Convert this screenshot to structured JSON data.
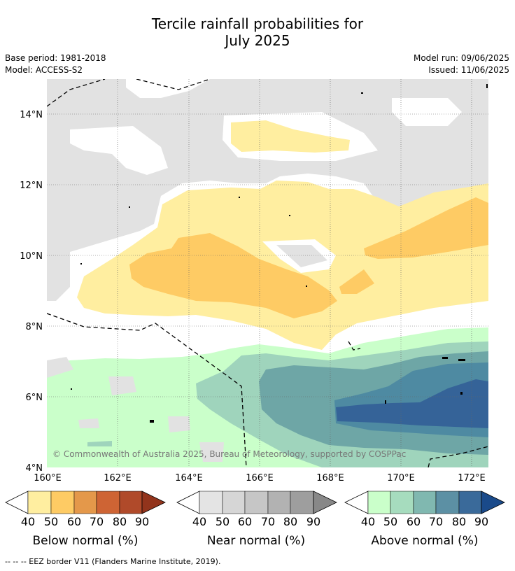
{
  "title": {
    "line1": "Tercile rainfall probabilities for",
    "line2": "July 2025"
  },
  "meta": {
    "base_period": "Base period: 1981-2018",
    "model": "Model: ACCESS-S2",
    "model_run": "Model run: 09/06/2025",
    "issued": "Issued: 11/06/2025"
  },
  "map": {
    "lat_labels": [
      "14°N",
      "12°N",
      "10°N",
      "8°N",
      "6°N",
      "4°N"
    ],
    "lon_labels": [
      "160°E",
      "162°E",
      "164°E",
      "166°E",
      "168°E",
      "170°E",
      "172°E"
    ],
    "copyright": "© Commonwealth of Australia 2025, Bureau of Meteorology, supported by COSPPac",
    "colors": {
      "near_grey": "#e2e2e2",
      "below_40": "#ffeea0",
      "below_50": "#fecb64",
      "above_40": "#cbffcb",
      "above_50": "#9fd4bc",
      "above_60": "#6ea6a6",
      "above_70": "#4e8aa2",
      "above_80": "#356398"
    }
  },
  "legends": [
    {
      "label": "Below normal (%)",
      "ticks": [
        "40",
        "50",
        "60",
        "70",
        "80",
        "90"
      ],
      "colors": [
        "#ffeea0",
        "#fecb64",
        "#e4984a",
        "#ce6434",
        "#b04a2a",
        "#92341c"
      ]
    },
    {
      "label": "Near normal (%)",
      "ticks": [
        "40",
        "50",
        "60",
        "70",
        "80",
        "90"
      ],
      "colors": [
        "#e4e4e4",
        "#d6d6d6",
        "#c6c6c6",
        "#b2b2b2",
        "#9e9e9e",
        "#888888"
      ]
    },
    {
      "label": "Above normal (%)",
      "ticks": [
        "40",
        "50",
        "60",
        "70",
        "80",
        "90"
      ],
      "colors": [
        "#caffca",
        "#a6dcbe",
        "#80b8b0",
        "#5c90a4",
        "#3a6a9a",
        "#1a4a8a"
      ]
    }
  ],
  "footer": "--  --  -- EEZ border V11 (Flanders Marine Institute, 2019)."
}
